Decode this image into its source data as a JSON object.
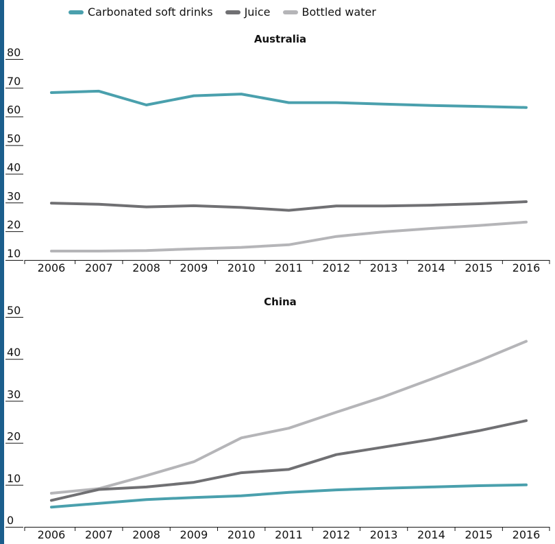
{
  "legend": {
    "items": [
      {
        "label": "Carbonated soft drinks",
        "color": "#4aa0ad"
      },
      {
        "label": "Juice",
        "color": "#707073"
      },
      {
        "label": "Bottled water",
        "color": "#b5b5b8"
      }
    ]
  },
  "chart_data": [
    {
      "type": "line",
      "title": "Australia",
      "xlabel": "",
      "ylabel": "",
      "x": [
        2006,
        2007,
        2008,
        2009,
        2010,
        2011,
        2012,
        2013,
        2014,
        2015,
        2016
      ],
      "yticks": [
        10,
        20,
        30,
        40,
        50,
        60,
        70,
        80
      ],
      "ylim": [
        10,
        80
      ],
      "series": [
        {
          "name": "Carbonated soft drinks",
          "color": "#4aa0ad",
          "values": [
            68.3,
            68.8,
            64.0,
            67.2,
            67.8,
            64.8,
            64.8,
            64.3,
            63.8,
            63.5,
            63.1
          ]
        },
        {
          "name": "Juice",
          "color": "#707073",
          "values": [
            29.8,
            29.4,
            28.5,
            28.9,
            28.3,
            27.3,
            28.8,
            28.8,
            29.1,
            29.6,
            30.3
          ]
        },
        {
          "name": "Bottled water",
          "color": "#b5b5b8",
          "values": [
            13.1,
            13.1,
            13.3,
            13.9,
            14.4,
            15.3,
            18.2,
            19.8,
            21.0,
            22.0,
            23.2
          ]
        }
      ]
    },
    {
      "type": "line",
      "title": "China",
      "xlabel": "",
      "ylabel": "",
      "x": [
        2006,
        2007,
        2008,
        2009,
        2010,
        2011,
        2012,
        2013,
        2014,
        2015,
        2016
      ],
      "yticks": [
        0,
        10,
        20,
        30,
        40,
        50
      ],
      "ylim": [
        0,
        50
      ],
      "series": [
        {
          "name": "Carbonated soft drinks",
          "color": "#4aa0ad",
          "values": [
            4.7,
            5.6,
            6.5,
            7.0,
            7.4,
            8.2,
            8.8,
            9.2,
            9.5,
            9.8,
            10.0
          ]
        },
        {
          "name": "Juice",
          "color": "#707073",
          "values": [
            6.3,
            8.9,
            9.5,
            10.6,
            12.9,
            13.7,
            17.2,
            19.0,
            20.8,
            22.9,
            25.3
          ]
        },
        {
          "name": "Bottled water",
          "color": "#b5b5b8",
          "values": [
            8.0,
            9.1,
            12.2,
            15.5,
            21.2,
            23.5,
            27.3,
            31.0,
            35.2,
            39.5,
            44.2
          ]
        }
      ]
    }
  ]
}
